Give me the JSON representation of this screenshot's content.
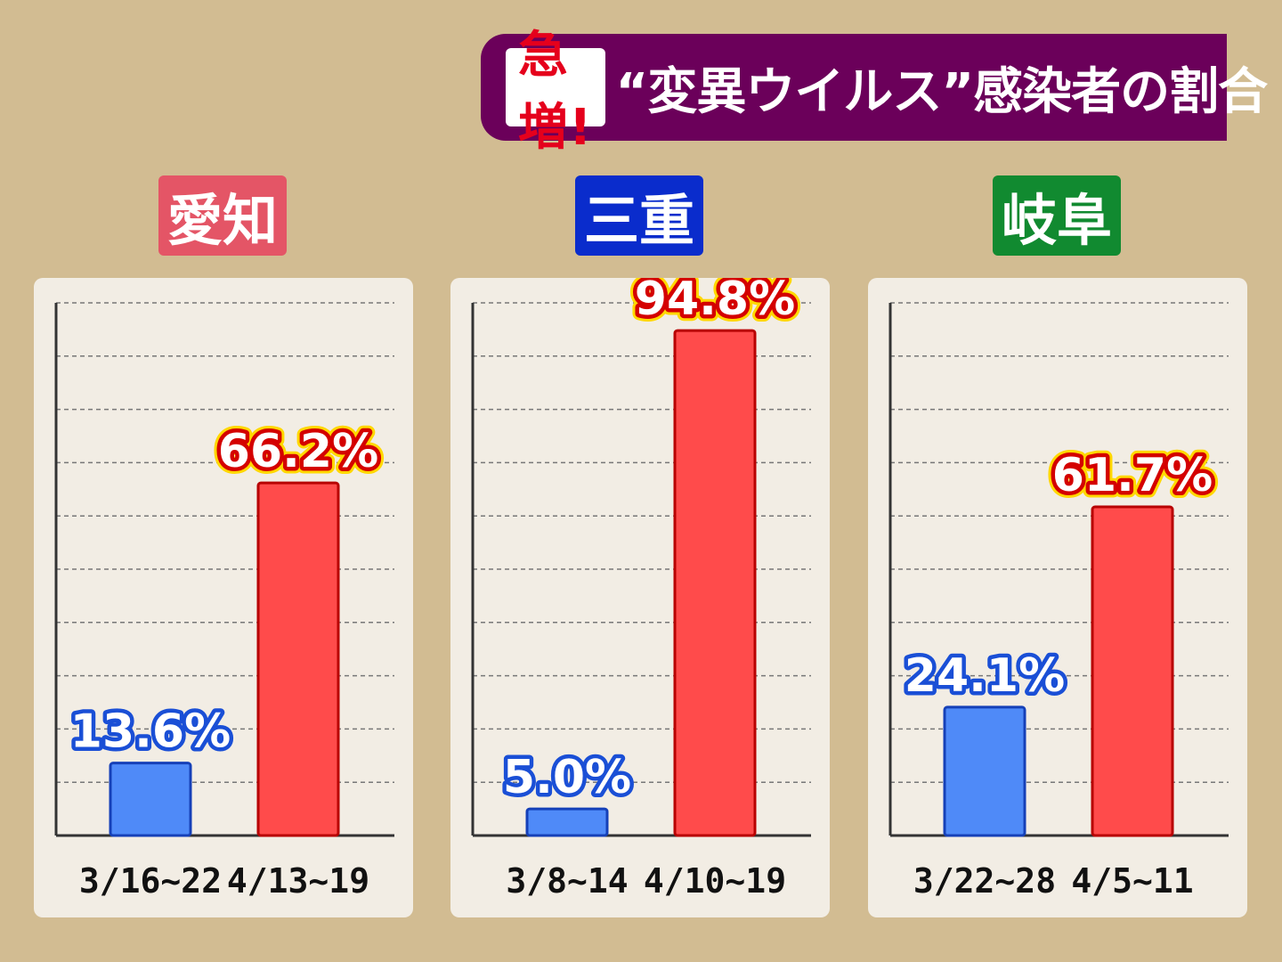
{
  "title": {
    "badge": "急増!",
    "text": "“変異ウイルス”感染者の割合"
  },
  "colors": {
    "background": "#d2bc92",
    "banner": "#6b005a",
    "panel": "#f2ede4",
    "bar_before": "#4f8af8",
    "bar_after": "#ff4b4b",
    "label_before_fill": "#ffffff",
    "label_before_stroke": "#1a4fd6",
    "label_after_fill": "#ffffff",
    "label_after_stroke": "#d40000"
  },
  "chart_data": [
    {
      "type": "bar",
      "title": "愛知",
      "title_color": "#e45566",
      "categories": [
        "3/16~22",
        "4/13~19"
      ],
      "values": [
        13.6,
        66.2
      ],
      "value_labels": [
        "13.6%",
        "66.2%"
      ],
      "ylim": [
        0,
        100
      ],
      "grid": true
    },
    {
      "type": "bar",
      "title": "三重",
      "title_color": "#0a2ccc",
      "categories": [
        "3/8~14",
        "4/10~19"
      ],
      "values": [
        5.0,
        94.8
      ],
      "value_labels": [
        "5.0%",
        "94.8%"
      ],
      "ylim": [
        0,
        100
      ],
      "grid": true
    },
    {
      "type": "bar",
      "title": "岐阜",
      "title_color": "#118a30",
      "categories": [
        "3/22~28",
        "4/5~11"
      ],
      "values": [
        24.1,
        61.7
      ],
      "value_labels": [
        "24.1%",
        "61.7%"
      ],
      "ylim": [
        0,
        100
      ],
      "grid": true
    }
  ]
}
